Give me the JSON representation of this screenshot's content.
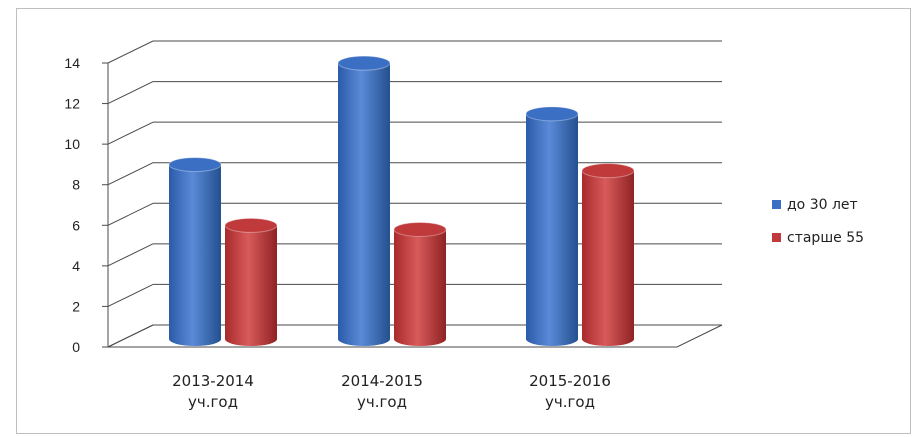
{
  "chart_data": {
    "type": "bar",
    "style": "3d-cylinder",
    "categories": [
      [
        "2013-2014",
        "уч.год"
      ],
      [
        "2014-2015",
        "уч.год"
      ],
      [
        "2015-2016",
        "уч.год"
      ]
    ],
    "series": [
      {
        "name": "до 30 лет",
        "color": "#3b6fc4",
        "values": [
          8.5,
          13.5,
          11
        ]
      },
      {
        "name": "старше 55",
        "color": "#c0393b",
        "values": [
          5.5,
          5.3,
          8.2
        ]
      }
    ],
    "y_ticks": [
      0,
      2,
      4,
      6,
      8,
      10,
      12,
      14
    ],
    "ylim": [
      0,
      14
    ],
    "grid": true,
    "legend_position": "right"
  }
}
